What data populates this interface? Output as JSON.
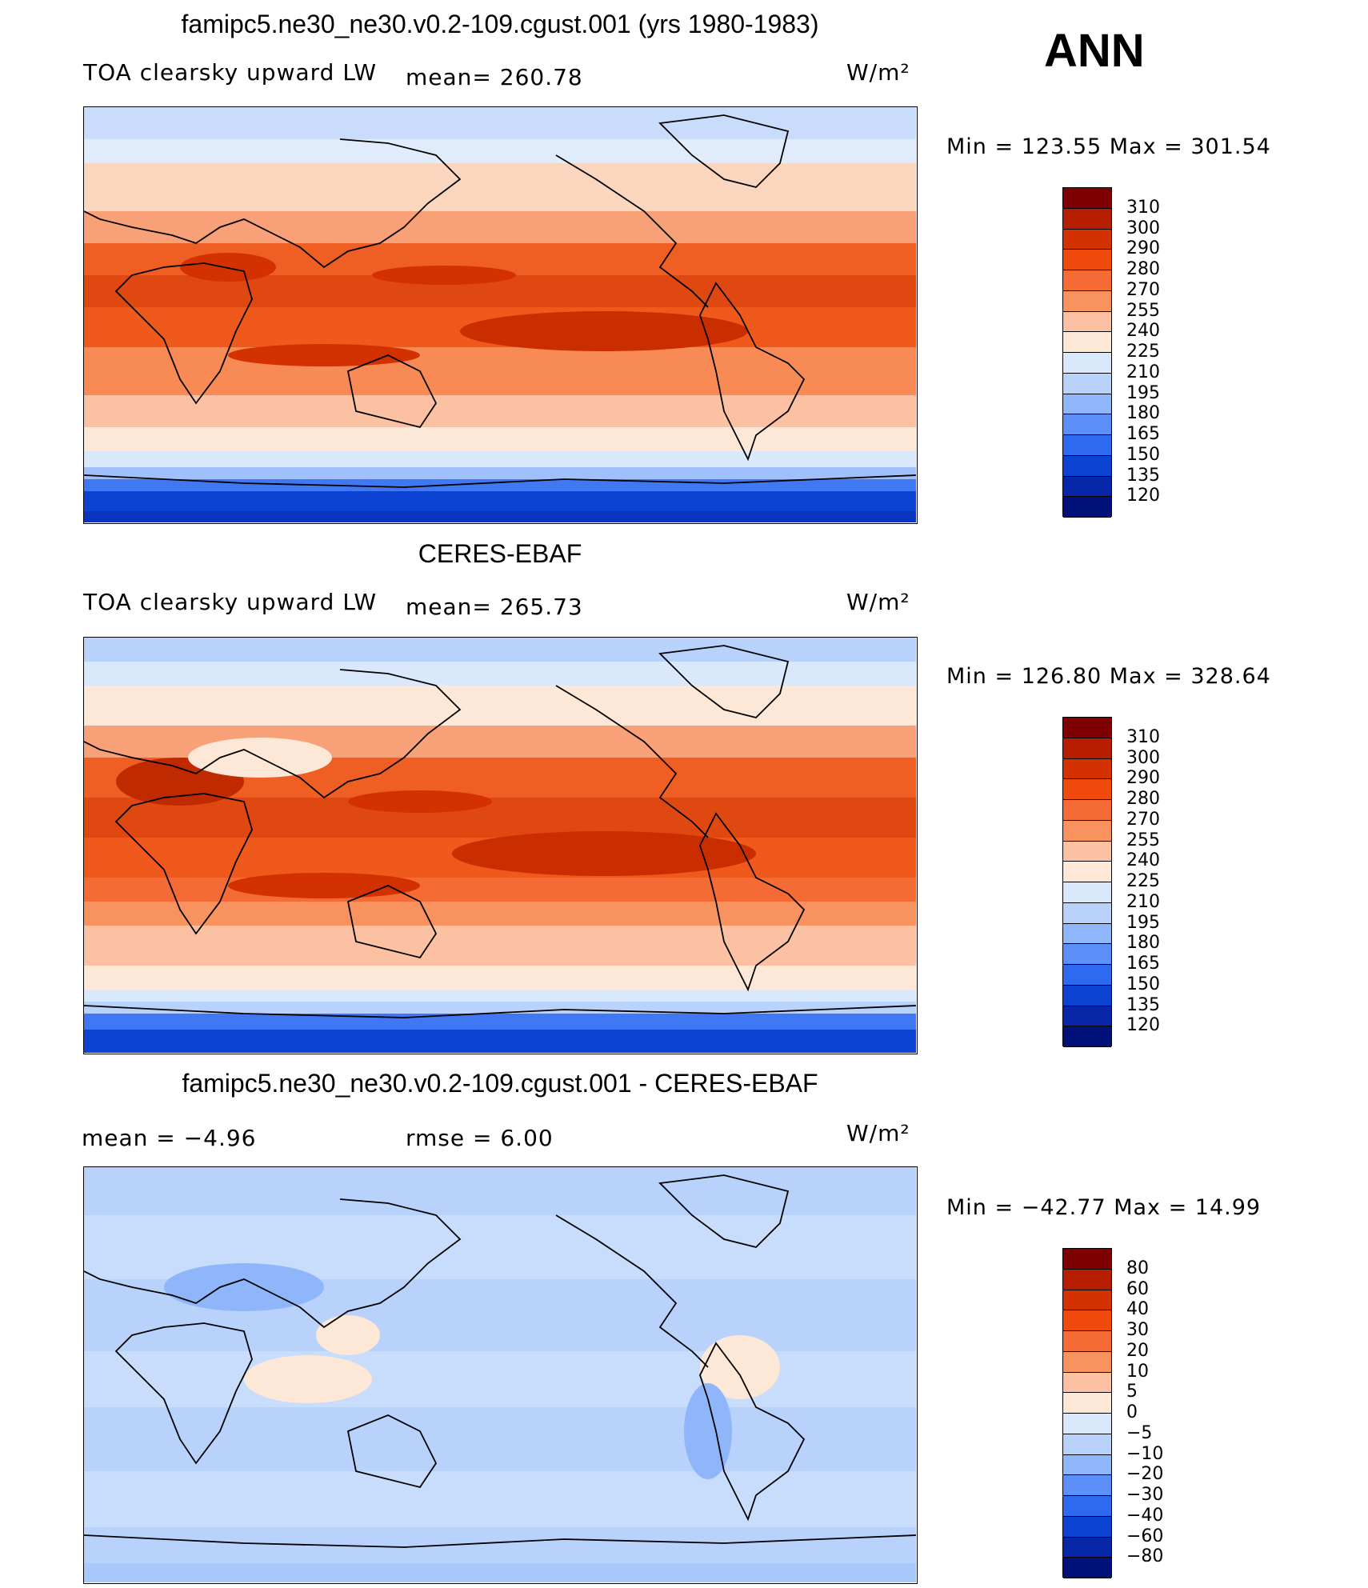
{
  "season": "ANN",
  "units_label": "W/m²",
  "panels": [
    {
      "id": "model",
      "title": "famipc5.ne30_ne30.v0.2-109.cgust.001 (yrs 1980-1983)",
      "variable": "TOA clearsky upward LW",
      "stat1": "mean= 260.78",
      "stat2": "",
      "minmax": "Min = 123.55 Max = 301.54",
      "colorbar": {
        "labels": [
          "310",
          "300",
          "290",
          "280",
          "270",
          "255",
          "240",
          "225",
          "210",
          "195",
          "180",
          "165",
          "150",
          "135",
          "120"
        ],
        "colors": [
          "#7f0000",
          "#b71e00",
          "#d43100",
          "#ef4a0c",
          "#f46b35",
          "#f8925f",
          "#fbc1a2",
          "#fde8d8",
          "#d9e8fb",
          "#b8d2fb",
          "#8fb5fb",
          "#5c8ff8",
          "#2d6af0",
          "#0d43d3",
          "#0726a8",
          "#00127a"
        ]
      }
    },
    {
      "id": "obs",
      "title": "CERES-EBAF",
      "variable": "TOA clearsky upward LW",
      "stat1": "mean= 265.73",
      "stat2": "",
      "minmax": "Min = 126.80 Max = 328.64",
      "colorbar": {
        "labels": [
          "310",
          "300",
          "290",
          "280",
          "270",
          "255",
          "240",
          "225",
          "210",
          "195",
          "180",
          "165",
          "150",
          "135",
          "120"
        ],
        "colors": [
          "#7f0000",
          "#b71e00",
          "#d43100",
          "#ef4a0c",
          "#f46b35",
          "#f8925f",
          "#fbc1a2",
          "#fde8d8",
          "#d9e8fb",
          "#b8d2fb",
          "#8fb5fb",
          "#5c8ff8",
          "#2d6af0",
          "#0d43d3",
          "#0726a8",
          "#00127a"
        ]
      }
    },
    {
      "id": "diff",
      "title": "famipc5.ne30_ne30.v0.2-109.cgust.001 - CERES-EBAF",
      "variable": "",
      "stat1": "mean =   −4.96",
      "stat2": "rmse =    6.00",
      "minmax": "Min = −42.77 Max =  14.99",
      "colorbar": {
        "labels": [
          "80",
          "60",
          "40",
          "30",
          "20",
          "10",
          "5",
          "0",
          "−5",
          "−10",
          "−20",
          "−30",
          "−40",
          "−60",
          "−80"
        ],
        "colors": [
          "#7f0000",
          "#b71e00",
          "#d43100",
          "#ef4a0c",
          "#f46b35",
          "#f8925f",
          "#fbc1a2",
          "#fde8d8",
          "#d9e8fb",
          "#b8d2fb",
          "#8fb5fb",
          "#5c8ff8",
          "#2d6af0",
          "#0d43d3",
          "#0726a8",
          "#00127a"
        ]
      }
    }
  ]
}
